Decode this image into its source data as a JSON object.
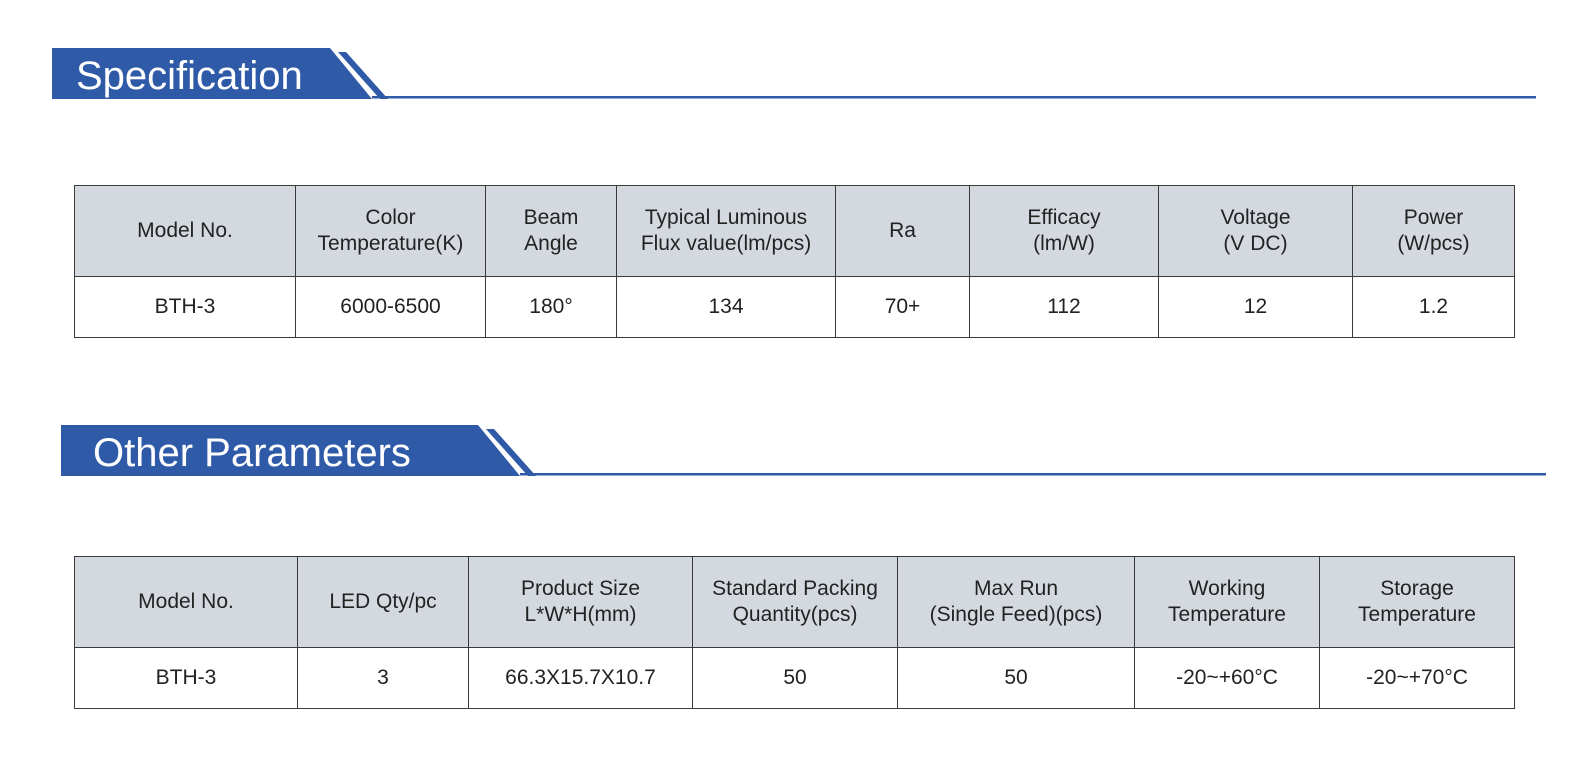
{
  "spec_section": {
    "title": "Specification"
  },
  "spec_table": {
    "headers": [
      "Model No.",
      "Color\nTemperature(K)",
      "Beam\nAngle",
      "Typical Luminous\nFlux value(lm/pcs)",
      "Ra",
      "Efficacy\n(lm/W)",
      "Voltage\n(V DC)",
      "Power\n(W/pcs)"
    ],
    "row": [
      "BTH-3",
      "6000-6500",
      "180°",
      "134",
      "70+",
      "112",
      "12",
      "1.2"
    ]
  },
  "other_section": {
    "title": "Other Parameters"
  },
  "other_table": {
    "headers": [
      "Model No.",
      "LED Qty/pc",
      "Product Size\nL*W*H(mm)",
      "Standard Packing\nQuantity(pcs)",
      "Max Run\n(Single Feed)(pcs)",
      "Working\nTemperature",
      "Storage\nTemperature"
    ],
    "row": [
      "BTH-3",
      "3",
      "66.3X15.7X10.7",
      "50",
      "50",
      "-20~+60°C",
      "-20~+70°C"
    ]
  },
  "colors": {
    "accent": "#2f5aa8",
    "header_bg": "#d3d9df",
    "border": "#3a3a3a"
  }
}
